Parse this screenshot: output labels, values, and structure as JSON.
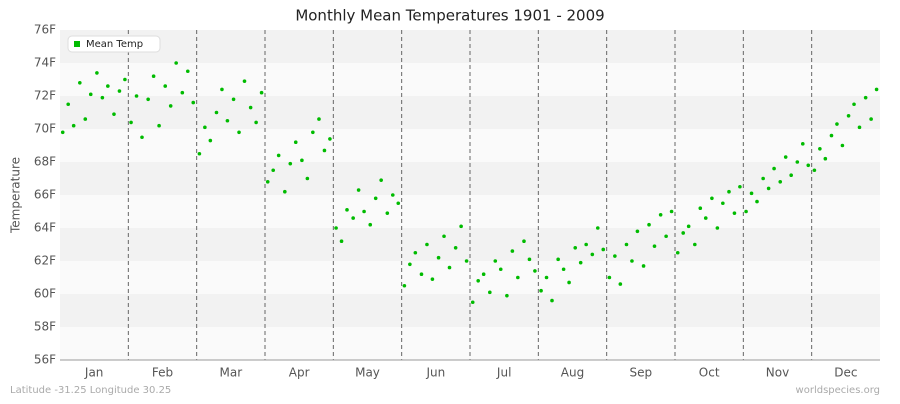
{
  "chart_data": {
    "type": "scatter",
    "title": "Monthly Mean Temperatures 1901 - 2009",
    "y_label": "Temperature",
    "footer_left": "Latitude -31.25 Longitude 30.25",
    "footer_right": "worldspecies.org",
    "legend": "top-left",
    "xlim": [
      0,
      12
    ],
    "xticks": [
      {
        "value": 0.5,
        "label": "Jan"
      },
      {
        "value": 1.5,
        "label": "Feb"
      },
      {
        "value": 2.5,
        "label": "Mar"
      },
      {
        "value": 3.5,
        "label": "Apr"
      },
      {
        "value": 4.5,
        "label": "May"
      },
      {
        "value": 5.5,
        "label": "Jun"
      },
      {
        "value": 6.5,
        "label": "Jul"
      },
      {
        "value": 7.5,
        "label": "Aug"
      },
      {
        "value": 8.5,
        "label": "Sep"
      },
      {
        "value": 9.5,
        "label": "Oct"
      },
      {
        "value": 10.5,
        "label": "Nov"
      },
      {
        "value": 11.5,
        "label": "Dec"
      }
    ],
    "ylim": [
      56,
      76
    ],
    "yticks": [
      {
        "value": 56,
        "label": "56F"
      },
      {
        "value": 58,
        "label": "58F"
      },
      {
        "value": 60,
        "label": "60F"
      },
      {
        "value": 62,
        "label": "62F"
      },
      {
        "value": 64,
        "label": "64F"
      },
      {
        "value": 66,
        "label": "66F"
      },
      {
        "value": 68,
        "label": "68F"
      },
      {
        "value": 70,
        "label": "70F"
      },
      {
        "value": 72,
        "label": "72F"
      },
      {
        "value": 74,
        "label": "74F"
      },
      {
        "value": 76,
        "label": "76F"
      }
    ],
    "series": [
      {
        "name": "Mean Temp",
        "color": "#00bb00",
        "x": [
          0.04,
          0.12,
          0.2,
          0.29,
          0.37,
          0.45,
          0.54,
          0.62,
          0.7,
          0.79,
          0.87,
          0.95,
          1.04,
          1.12,
          1.2,
          1.29,
          1.37,
          1.45,
          1.54,
          1.62,
          1.7,
          1.79,
          1.87,
          1.95,
          2.04,
          2.12,
          2.2,
          2.29,
          2.37,
          2.45,
          2.54,
          2.62,
          2.7,
          2.79,
          2.87,
          2.95,
          3.04,
          3.12,
          3.2,
          3.29,
          3.37,
          3.45,
          3.54,
          3.62,
          3.7,
          3.79,
          3.87,
          3.95,
          4.04,
          4.12,
          4.2,
          4.29,
          4.37,
          4.45,
          4.54,
          4.62,
          4.7,
          4.79,
          4.87,
          4.95,
          5.04,
          5.12,
          5.2,
          5.29,
          5.37,
          5.45,
          5.54,
          5.62,
          5.7,
          5.79,
          5.87,
          5.95,
          6.04,
          6.12,
          6.2,
          6.29,
          6.37,
          6.45,
          6.54,
          6.62,
          6.7,
          6.79,
          6.87,
          6.95,
          7.04,
          7.12,
          7.2,
          7.29,
          7.37,
          7.45,
          7.54,
          7.62,
          7.7,
          7.79,
          7.87,
          7.95,
          8.04,
          8.12,
          8.2,
          8.29,
          8.37,
          8.45,
          8.54,
          8.62,
          8.7,
          8.79,
          8.87,
          8.95,
          9.04,
          9.12,
          9.2,
          9.29,
          9.37,
          9.45,
          9.54,
          9.62,
          9.7,
          9.79,
          9.87,
          9.95,
          10.04,
          10.12,
          10.2,
          10.29,
          10.37,
          10.45,
          10.54,
          10.62,
          10.7,
          10.79,
          10.87,
          10.95,
          11.04,
          11.12,
          11.2,
          11.29,
          11.37,
          11.45,
          11.54,
          11.62,
          11.7,
          11.79,
          11.87,
          11.95
        ],
        "values": [
          69.8,
          71.5,
          70.2,
          72.8,
          70.6,
          72.1,
          73.4,
          71.9,
          72.6,
          70.9,
          72.3,
          73.0,
          70.4,
          72.0,
          69.5,
          71.8,
          73.2,
          70.2,
          72.6,
          71.4,
          74.0,
          72.2,
          73.5,
          71.6,
          68.5,
          70.1,
          69.3,
          71.0,
          72.4,
          70.5,
          71.8,
          69.8,
          72.9,
          71.3,
          70.4,
          72.2,
          66.8,
          67.5,
          68.4,
          66.2,
          67.9,
          69.2,
          68.1,
          67.0,
          69.8,
          70.6,
          68.7,
          69.4,
          64.0,
          63.2,
          65.1,
          64.6,
          66.3,
          65.0,
          64.2,
          65.8,
          66.9,
          64.9,
          66.0,
          65.5,
          60.5,
          61.8,
          62.5,
          61.2,
          63.0,
          60.9,
          62.2,
          63.5,
          61.6,
          62.8,
          64.1,
          62.0,
          59.5,
          60.8,
          61.2,
          60.1,
          62.0,
          61.5,
          59.9,
          62.6,
          61.0,
          63.2,
          62.1,
          61.4,
          60.2,
          61.0,
          59.6,
          62.1,
          61.5,
          60.7,
          62.8,
          61.9,
          63.0,
          62.4,
          64.0,
          62.7,
          61.0,
          62.3,
          60.6,
          63.0,
          62.0,
          63.8,
          61.7,
          64.2,
          62.9,
          64.8,
          63.5,
          65.0,
          62.5,
          63.7,
          64.1,
          63.0,
          65.2,
          64.6,
          65.8,
          64.0,
          65.5,
          66.2,
          64.9,
          66.5,
          65.0,
          66.1,
          65.6,
          67.0,
          66.4,
          67.6,
          66.8,
          68.3,
          67.2,
          68.0,
          69.1,
          67.8,
          67.5,
          68.8,
          68.2,
          69.6,
          70.3,
          69.0,
          70.8,
          71.5,
          70.1,
          71.9,
          70.6,
          72.4
        ]
      }
    ]
  }
}
